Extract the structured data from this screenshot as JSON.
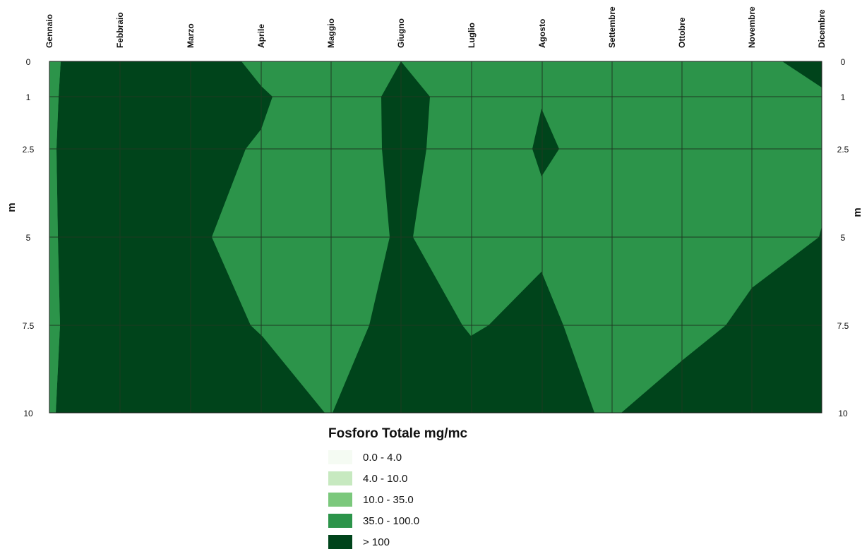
{
  "chart_data": {
    "type": "heatmap",
    "title": "",
    "xlabel": "",
    "ylabel": "m",
    "months": [
      "Gennaio",
      "Febbraio",
      "Marzo",
      "Aprile",
      "Maggio",
      "Giugno",
      "Luglio",
      "Agosto",
      "Settembre",
      "Ottobre",
      "Novembre",
      "Dicembre"
    ],
    "depths": [
      0,
      1,
      2.5,
      5,
      7.5,
      10
    ],
    "depth_tick_labels": [
      "0",
      "1",
      "2.5",
      "5",
      "7.5",
      "10"
    ],
    "ylim": [
      0,
      10
    ],
    "y_inverted": true,
    "grid": true,
    "legend": {
      "title": "Fosforo Totale mg/mc",
      "placement": "bottom-center",
      "classes": [
        {
          "label": "0.0 - 4.0",
          "color": "#f5fbf3"
        },
        {
          "label": "4.0 - 10.0",
          "color": "#c7e9c0"
        },
        {
          "label": "10.0 - 35.0",
          "color": "#7bc87c"
        },
        {
          "label": "35.0 - 100.0",
          "color": "#2c944a"
        },
        {
          "label": "> 100",
          "color": "#00441b"
        }
      ]
    },
    "class_index_by_month_and_depth": {
      "note_levels": "0=0.0-4.0, 1=4.0-10.0, 2=10.0-35.0, 3=35.0-100.0, 4=>100",
      "rows_depths": [
        0,
        1,
        2.5,
        5,
        7.5,
        10
      ],
      "Gennaio": [
        4,
        4,
        4,
        4,
        4,
        4
      ],
      "Febbraio": [
        4,
        4,
        4,
        4,
        4,
        4
      ],
      "Marzo": [
        4,
        4,
        4,
        4,
        4,
        4
      ],
      "Aprile": [
        3,
        3,
        3,
        3,
        4,
        4
      ],
      "Maggio": [
        3,
        3,
        3,
        3,
        3,
        4
      ],
      "Giugno": [
        4,
        4,
        4,
        4,
        4,
        4
      ],
      "Luglio": [
        3,
        3,
        3,
        3,
        3,
        4
      ],
      "Agosto": [
        3,
        3,
        4,
        3,
        4,
        4
      ],
      "Settembre": [
        3,
        3,
        3,
        3,
        3,
        3
      ],
      "Ottobre": [
        3,
        3,
        3,
        3,
        3,
        4
      ],
      "Novembre": [
        3,
        3,
        3,
        3,
        4,
        4
      ],
      "Dicembre": [
        4,
        3,
        3,
        4,
        4,
        4
      ]
    }
  }
}
